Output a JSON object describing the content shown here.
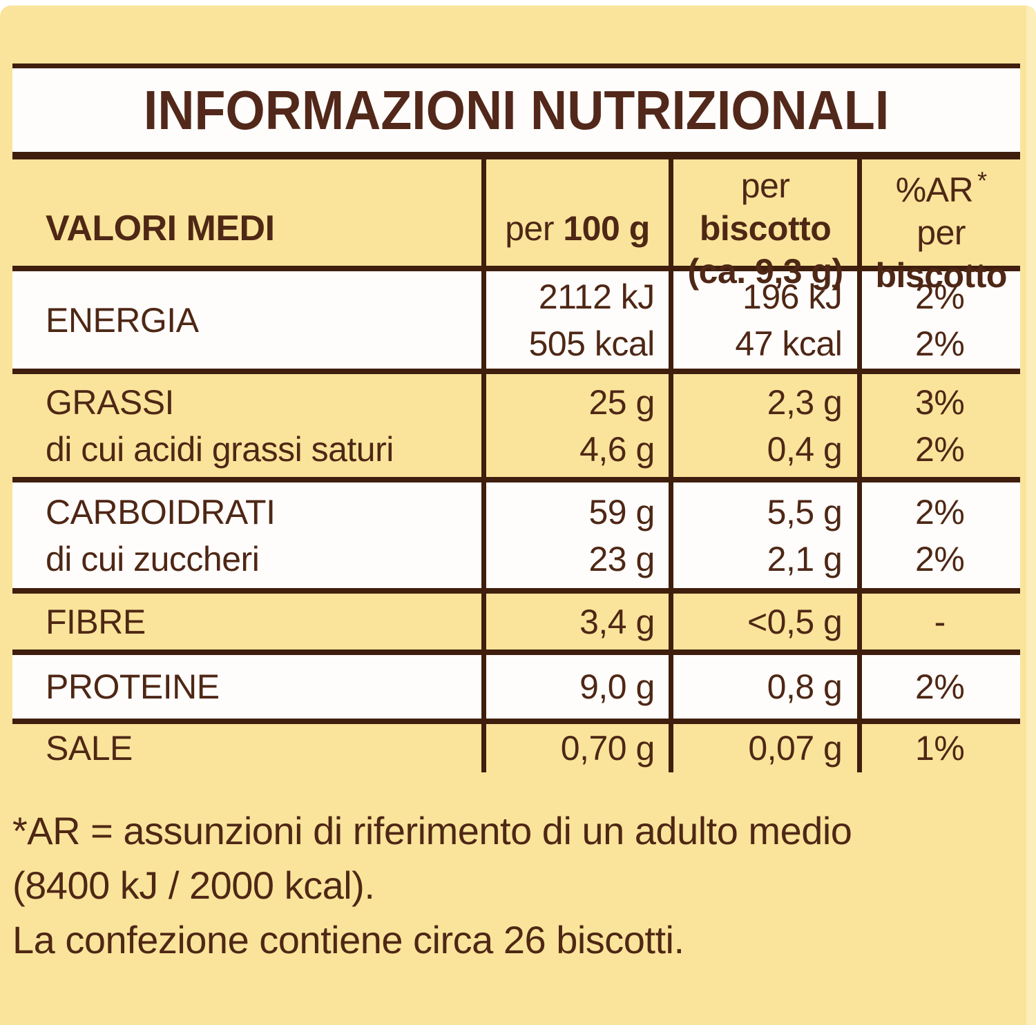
{
  "colors": {
    "sheet_yellow": "#fae49b",
    "band_white": "#fffdfb",
    "text_brown": "#4e2715",
    "line_brown": "#3f1e0d"
  },
  "title": "INFORMAZIONI NUTRIZIONALI",
  "header": {
    "col1": "VALORI MEDI",
    "col2": {
      "pre": "per",
      "bold": "100 g"
    },
    "col3": {
      "pre": "per",
      "bold": "biscotto",
      "line2": "(ca. 9,3 g)"
    },
    "col4": {
      "line1": "%AR",
      "star": "*",
      "pre": "per",
      "bold": "biscotto"
    }
  },
  "rows": [
    {
      "label": "ENERGIA",
      "sublabel": "",
      "per100": [
        "2112 kJ",
        "505 kcal"
      ],
      "per_biscotto": [
        "196 kJ",
        "47 kcal"
      ],
      "percent_ar": [
        "2%",
        "2%"
      ]
    },
    {
      "label": "GRASSI",
      "sublabel": "di cui acidi grassi saturi",
      "per100": [
        "25 g",
        "4,6 g"
      ],
      "per_biscotto": [
        "2,3 g",
        "0,4 g"
      ],
      "percent_ar": [
        "3%",
        "2%"
      ]
    },
    {
      "label": "CARBOIDRATI",
      "sublabel": "di cui zuccheri",
      "per100": [
        "59 g",
        "23 g"
      ],
      "per_biscotto": [
        "5,5 g",
        "2,1 g"
      ],
      "percent_ar": [
        "2%",
        "2%"
      ]
    },
    {
      "label": "FIBRE",
      "per100": [
        "3,4 g"
      ],
      "per_biscotto": [
        "<0,5 g"
      ],
      "percent_ar": [
        "-"
      ]
    },
    {
      "label": "PROTEINE",
      "per100": [
        "9,0 g"
      ],
      "per_biscotto": [
        "0,8 g"
      ],
      "percent_ar": [
        "2%"
      ]
    },
    {
      "label": "SALE",
      "per100": [
        "0,70 g"
      ],
      "per_biscotto": [
        "0,07 g"
      ],
      "percent_ar": [
        "1%"
      ]
    }
  ],
  "footnote": {
    "line1": "*AR = assunzioni di riferimento di un adulto medio",
    "line2": "(8400 kJ / 2000 kcal).",
    "line3": "La confezione contiene circa 26 biscotti."
  }
}
